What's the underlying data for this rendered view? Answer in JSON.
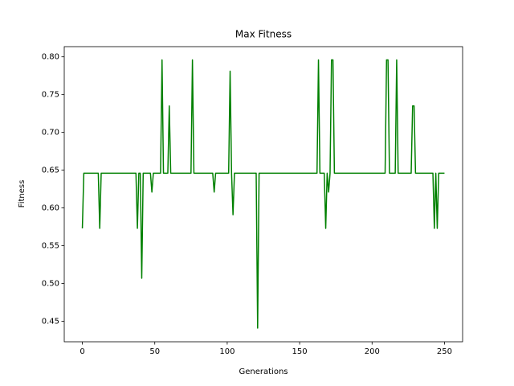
{
  "chart_data": {
    "type": "line",
    "title": "Max Fitness",
    "x_label": "Generations",
    "y_label": "Fitness",
    "x": [
      0,
      1,
      2,
      3,
      4,
      5,
      6,
      7,
      8,
      9,
      10,
      11,
      12,
      13,
      14,
      15,
      16,
      17,
      18,
      19,
      20,
      21,
      22,
      23,
      24,
      25,
      26,
      27,
      28,
      29,
      30,
      31,
      32,
      33,
      34,
      35,
      36,
      37,
      38,
      39,
      40,
      41,
      42,
      43,
      44,
      45,
      46,
      47,
      48,
      49,
      50,
      51,
      52,
      53,
      54,
      55,
      56,
      57,
      58,
      59,
      60,
      61,
      62,
      63,
      64,
      65,
      66,
      67,
      68,
      69,
      70,
      71,
      72,
      73,
      74,
      75,
      76,
      77,
      78,
      79,
      80,
      81,
      82,
      83,
      84,
      85,
      86,
      87,
      88,
      89,
      90,
      91,
      92,
      93,
      94,
      95,
      96,
      97,
      98,
      99,
      100,
      101,
      102,
      103,
      104,
      105,
      106,
      107,
      108,
      109,
      110,
      111,
      112,
      113,
      114,
      115,
      116,
      117,
      118,
      119,
      120,
      121,
      122,
      123,
      124,
      125,
      126,
      127,
      128,
      129,
      130,
      131,
      132,
      133,
      134,
      135,
      136,
      137,
      138,
      139,
      140,
      141,
      142,
      143,
      144,
      145,
      146,
      147,
      148,
      149,
      150,
      151,
      152,
      153,
      154,
      155,
      156,
      157,
      158,
      159,
      160,
      161,
      162,
      163,
      164,
      165,
      166,
      167,
      168,
      169,
      170,
      171,
      172,
      173,
      174,
      175,
      176,
      177,
      178,
      179,
      180,
      181,
      182,
      183,
      184,
      185,
      186,
      187,
      188,
      189,
      190,
      191,
      192,
      193,
      194,
      195,
      196,
      197,
      198,
      199,
      200,
      201,
      202,
      203,
      204,
      205,
      206,
      207,
      208,
      209,
      210,
      211,
      212,
      213,
      214,
      215,
      216,
      217,
      218,
      219,
      220,
      221,
      222,
      223,
      224,
      225,
      226,
      227,
      228,
      229,
      230,
      231,
      232,
      233,
      234,
      235,
      236,
      237,
      238,
      239,
      240,
      241,
      242,
      243,
      244,
      245,
      246,
      247,
      248,
      249,
      250
    ],
    "series": [
      {
        "name": "Max Fitness",
        "color": "#008000",
        "values": [
          0.573,
          0.646,
          0.646,
          0.646,
          0.646,
          0.646,
          0.646,
          0.646,
          0.646,
          0.646,
          0.646,
          0.646,
          0.573,
          0.646,
          0.646,
          0.646,
          0.646,
          0.646,
          0.646,
          0.646,
          0.646,
          0.646,
          0.646,
          0.646,
          0.646,
          0.646,
          0.646,
          0.646,
          0.646,
          0.646,
          0.646,
          0.646,
          0.646,
          0.646,
          0.646,
          0.646,
          0.646,
          0.646,
          0.573,
          0.646,
          0.646,
          0.507,
          0.646,
          0.646,
          0.646,
          0.646,
          0.646,
          0.646,
          0.621,
          0.646,
          0.646,
          0.646,
          0.646,
          0.646,
          0.646,
          0.796,
          0.646,
          0.646,
          0.646,
          0.646,
          0.735,
          0.646,
          0.646,
          0.646,
          0.646,
          0.646,
          0.646,
          0.646,
          0.646,
          0.646,
          0.646,
          0.646,
          0.646,
          0.646,
          0.646,
          0.646,
          0.796,
          0.646,
          0.646,
          0.646,
          0.646,
          0.646,
          0.646,
          0.646,
          0.646,
          0.646,
          0.646,
          0.646,
          0.646,
          0.646,
          0.646,
          0.621,
          0.646,
          0.646,
          0.646,
          0.646,
          0.646,
          0.646,
          0.646,
          0.646,
          0.646,
          0.646,
          0.781,
          0.646,
          0.591,
          0.646,
          0.646,
          0.646,
          0.646,
          0.646,
          0.646,
          0.646,
          0.646,
          0.646,
          0.646,
          0.646,
          0.646,
          0.646,
          0.646,
          0.646,
          0.646,
          0.441,
          0.646,
          0.646,
          0.646,
          0.646,
          0.646,
          0.646,
          0.646,
          0.646,
          0.646,
          0.646,
          0.646,
          0.646,
          0.646,
          0.646,
          0.646,
          0.646,
          0.646,
          0.646,
          0.646,
          0.646,
          0.646,
          0.646,
          0.646,
          0.646,
          0.646,
          0.646,
          0.646,
          0.646,
          0.646,
          0.646,
          0.646,
          0.646,
          0.646,
          0.646,
          0.646,
          0.646,
          0.646,
          0.646,
          0.646,
          0.646,
          0.646,
          0.796,
          0.646,
          0.646,
          0.646,
          0.646,
          0.573,
          0.646,
          0.621,
          0.646,
          0.796,
          0.796,
          0.646,
          0.646,
          0.646,
          0.646,
          0.646,
          0.646,
          0.646,
          0.646,
          0.646,
          0.646,
          0.646,
          0.646,
          0.646,
          0.646,
          0.646,
          0.646,
          0.646,
          0.646,
          0.646,
          0.646,
          0.646,
          0.646,
          0.646,
          0.646,
          0.646,
          0.646,
          0.646,
          0.646,
          0.646,
          0.646,
          0.646,
          0.646,
          0.646,
          0.646,
          0.646,
          0.646,
          0.796,
          0.796,
          0.646,
          0.646,
          0.646,
          0.646,
          0.646,
          0.796,
          0.646,
          0.646,
          0.646,
          0.646,
          0.646,
          0.646,
          0.646,
          0.646,
          0.646,
          0.646,
          0.735,
          0.735,
          0.646,
          0.646,
          0.646,
          0.646,
          0.646,
          0.646,
          0.646,
          0.646,
          0.646,
          0.646,
          0.646,
          0.646,
          0.646,
          0.573,
          0.646,
          0.573,
          0.646,
          0.646,
          0.646,
          0.646,
          0.646
        ]
      }
    ],
    "xlim": [
      -12.5,
      262.5
    ],
    "xticks": [
      0,
      50,
      100,
      150,
      200,
      250
    ],
    "ylim": [
      0.4229,
      0.8135
    ],
    "yticks": [
      0.45,
      {
        "value": 0.5,
        "label": "0.50"
      },
      0.55,
      {
        "value": 0.6,
        "label": "0.60"
      },
      0.65,
      {
        "value": 0.7,
        "label": "0.70"
      },
      0.75,
      {
        "value": 0.8,
        "label": "0.80"
      }
    ],
    "grid": false
  }
}
